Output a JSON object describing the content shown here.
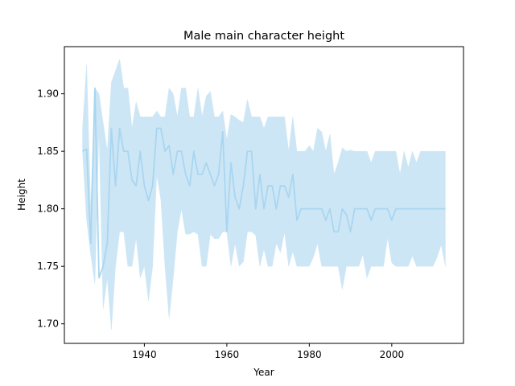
{
  "chart_data": {
    "type": "line",
    "title": "Male main character height",
    "xlabel": "Year",
    "ylabel": "Height",
    "xlim": [
      1920.6,
      2017.4
    ],
    "ylim": [
      1.683,
      1.941
    ],
    "xticks": [
      1940,
      1960,
      1980,
      2000
    ],
    "yticks": [
      1.7,
      1.75,
      1.8,
      1.85,
      1.9
    ],
    "ytick_labels": [
      "1.70",
      "1.75",
      "1.80",
      "1.85",
      "1.90"
    ],
    "grid": false,
    "colors": {
      "line": "#a8d6f0",
      "band": "#cde6f5"
    },
    "series": [
      {
        "x": [
          1925,
          1926,
          1927,
          1928,
          1929,
          1930,
          1931,
          1932,
          1933,
          1934,
          1935,
          1936,
          1937,
          1938,
          1939,
          1940,
          1941,
          1942,
          1943,
          1944,
          1945,
          1946,
          1947,
          1948,
          1949,
          1950,
          1951,
          1952,
          1953,
          1954,
          1955,
          1956,
          1957,
          1958,
          1959,
          1960,
          1961,
          1962,
          1963,
          1964,
          1965,
          1966,
          1967,
          1968,
          1969,
          1970,
          1971,
          1972,
          1973,
          1974,
          1975,
          1976,
          1977,
          1978,
          1979,
          1980,
          1981,
          1982,
          1983,
          1984,
          1985,
          1986,
          1987,
          1988,
          1989,
          1990,
          1991,
          1992,
          1993,
          1994,
          1995,
          1996,
          1997,
          1998,
          1999,
          2000,
          2001,
          2002,
          2003,
          2004,
          2005,
          2006,
          2007,
          2008,
          2009,
          2010,
          2011,
          2012,
          2013
        ],
        "y": [
          1.85,
          1.852,
          1.77,
          1.905,
          1.74,
          1.75,
          1.77,
          1.87,
          1.82,
          1.87,
          1.85,
          1.85,
          1.825,
          1.82,
          1.85,
          1.82,
          1.807,
          1.82,
          1.87,
          1.87,
          1.85,
          1.855,
          1.83,
          1.85,
          1.85,
          1.83,
          1.82,
          1.85,
          1.83,
          1.83,
          1.84,
          1.83,
          1.82,
          1.83,
          1.867,
          1.78,
          1.84,
          1.81,
          1.8,
          1.82,
          1.85,
          1.85,
          1.8,
          1.83,
          1.8,
          1.82,
          1.82,
          1.8,
          1.82,
          1.82,
          1.81,
          1.83,
          1.79,
          1.8,
          1.8,
          1.8,
          1.8,
          1.8,
          1.8,
          1.79,
          1.8,
          1.78,
          1.78,
          1.8,
          1.795,
          1.78,
          1.8,
          1.8,
          1.8,
          1.8,
          1.79,
          1.8,
          1.8,
          1.8,
          1.8,
          1.79,
          1.8,
          1.8,
          1.8,
          1.8,
          1.8,
          1.8,
          1.8,
          1.8,
          1.8,
          1.8,
          1.8,
          1.8,
          1.8
        ],
        "upper": [
          1.87,
          1.925,
          1.8,
          1.905,
          1.9,
          1.875,
          1.85,
          1.91,
          1.92,
          1.93,
          1.905,
          1.905,
          1.87,
          1.893,
          1.88,
          1.88,
          1.88,
          1.88,
          1.885,
          1.88,
          1.88,
          1.905,
          1.9,
          1.88,
          1.905,
          1.905,
          1.88,
          1.88,
          1.905,
          1.88,
          1.898,
          1.902,
          1.88,
          1.88,
          1.885,
          1.86,
          1.882,
          1.88,
          1.877,
          1.875,
          1.895,
          1.88,
          1.88,
          1.88,
          1.87,
          1.88,
          1.88,
          1.88,
          1.88,
          1.88,
          1.85,
          1.88,
          1.85,
          1.85,
          1.85,
          1.855,
          1.85,
          1.87,
          1.867,
          1.85,
          1.865,
          1.83,
          1.84,
          1.853,
          1.85,
          1.851,
          1.85,
          1.85,
          1.85,
          1.85,
          1.84,
          1.85,
          1.85,
          1.85,
          1.85,
          1.85,
          1.85,
          1.83,
          1.85,
          1.836,
          1.85,
          1.84,
          1.85,
          1.85,
          1.85,
          1.85,
          1.85,
          1.85,
          1.85
        ],
        "lower": [
          1.85,
          1.79,
          1.76,
          1.735,
          1.87,
          1.713,
          1.74,
          1.695,
          1.75,
          1.78,
          1.78,
          1.75,
          1.75,
          1.775,
          1.74,
          1.75,
          1.72,
          1.75,
          1.83,
          1.808,
          1.75,
          1.705,
          1.74,
          1.78,
          1.8,
          1.778,
          1.778,
          1.78,
          1.778,
          1.75,
          1.75,
          1.778,
          1.774,
          1.774,
          1.78,
          1.78,
          1.75,
          1.77,
          1.75,
          1.754,
          1.78,
          1.78,
          1.777,
          1.75,
          1.765,
          1.75,
          1.75,
          1.77,
          1.762,
          1.78,
          1.75,
          1.763,
          1.75,
          1.75,
          1.75,
          1.75,
          1.758,
          1.77,
          1.75,
          1.75,
          1.75,
          1.75,
          1.75,
          1.73,
          1.75,
          1.75,
          1.75,
          1.75,
          1.76,
          1.74,
          1.75,
          1.75,
          1.75,
          1.75,
          1.775,
          1.753,
          1.75,
          1.75,
          1.75,
          1.75,
          1.759,
          1.75,
          1.75,
          1.75,
          1.75,
          1.75,
          1.758,
          1.769,
          1.75
        ]
      }
    ]
  }
}
